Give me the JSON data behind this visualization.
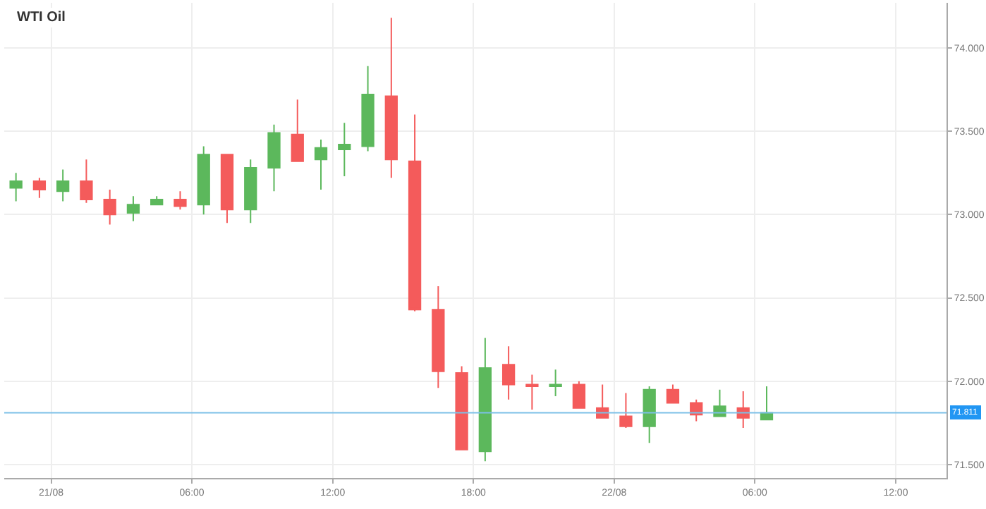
{
  "chart_data": {
    "type": "candlestick",
    "title": "WTI Oil",
    "x": [
      "--08-20T22:30",
      "--08-20T23:30",
      "--08-21T00:30",
      "--08-21T01:30",
      "--08-21T02:30",
      "--08-21T03:30",
      "--08-21T04:30",
      "--08-21T05:30",
      "--08-21T06:30",
      "--08-21T07:30",
      "--08-21T08:30",
      "--08-21T09:30",
      "--08-21T10:30",
      "--08-21T11:30",
      "--08-21T12:30",
      "--08-21T13:30",
      "--08-21T14:30",
      "--08-21T15:30",
      "--08-21T16:30",
      "--08-21T17:30",
      "--08-21T18:30",
      "--08-21T19:30",
      "--08-21T20:30",
      "--08-21T21:30",
      "--08-21T22:30",
      "--08-21T23:30",
      "--08-22T00:30",
      "--08-22T01:30",
      "--08-22T02:30",
      "--08-22T03:30",
      "--08-22T04:30",
      "--08-22T05:30",
      "--08-22T06:30"
    ],
    "ohlc": [
      [
        73.16,
        73.25,
        73.08,
        73.2
      ],
      [
        73.2,
        73.22,
        73.1,
        73.15
      ],
      [
        73.14,
        73.27,
        73.08,
        73.2
      ],
      [
        73.2,
        73.33,
        73.07,
        73.09
      ],
      [
        73.09,
        73.15,
        72.94,
        73.0
      ],
      [
        73.01,
        73.11,
        72.96,
        73.06
      ],
      [
        73.06,
        73.11,
        73.06,
        73.09
      ],
      [
        73.09,
        73.14,
        73.03,
        73.05
      ],
      [
        73.06,
        73.41,
        73.0,
        73.36
      ],
      [
        73.36,
        73.36,
        72.95,
        73.03
      ],
      [
        73.03,
        73.33,
        72.95,
        73.28
      ],
      [
        73.28,
        73.54,
        73.14,
        73.49
      ],
      [
        73.48,
        73.69,
        73.32,
        73.32
      ],
      [
        73.33,
        73.45,
        73.15,
        73.4
      ],
      [
        73.39,
        73.55,
        73.23,
        73.42
      ],
      [
        73.41,
        73.89,
        73.38,
        73.72
      ],
      [
        73.71,
        74.18,
        73.22,
        73.33
      ],
      [
        73.32,
        73.6,
        72.42,
        72.43
      ],
      [
        72.43,
        72.57,
        71.96,
        72.06
      ],
      [
        72.05,
        72.09,
        71.59,
        71.59
      ],
      [
        71.58,
        72.26,
        71.52,
        72.08
      ],
      [
        72.1,
        72.21,
        71.89,
        71.98
      ],
      [
        71.98,
        72.04,
        71.83,
        71.97
      ],
      [
        71.97,
        72.07,
        71.91,
        71.98
      ],
      [
        71.98,
        72.0,
        71.84,
        71.84
      ],
      [
        71.84,
        71.98,
        71.78,
        71.78
      ],
      [
        71.79,
        71.93,
        71.72,
        71.73
      ],
      [
        71.73,
        71.97,
        71.63,
        71.95
      ],
      [
        71.95,
        71.98,
        71.87,
        71.87
      ],
      [
        71.87,
        71.89,
        71.76,
        71.8
      ],
      [
        71.79,
        71.95,
        71.79,
        71.85
      ],
      [
        71.84,
        71.94,
        71.72,
        71.78
      ],
      [
        71.77,
        71.97,
        71.77,
        71.811
      ]
    ],
    "colors": [
      "#5cb85c",
      "#f45b5b",
      "#5cb85c",
      "#f45b5b",
      "#f45b5b",
      "#5cb85c",
      "#5cb85c",
      "#f45b5b",
      "#5cb85c",
      "#f45b5b",
      "#5cb85c",
      "#5cb85c",
      "#f45b5b",
      "#5cb85c",
      "#5cb85c",
      "#5cb85c",
      "#f45b5b",
      "#f45b5b",
      "#f45b5b",
      "#f45b5b",
      "#5cb85c",
      "#f45b5b",
      "#f45b5b",
      "#5cb85c",
      "#f45b5b",
      "#f45b5b",
      "#f45b5b",
      "#5cb85c",
      "#f45b5b",
      "#f45b5b",
      "#5cb85c",
      "#f45b5b",
      "#5cb85c"
    ],
    "xlim": [
      "--08-20T22:00",
      "--08-22T14:10"
    ],
    "xticks": [
      {
        "value": "--08-21T00:00",
        "label": "21/08"
      },
      {
        "value": "--08-21T06:00",
        "label": "06:00"
      },
      {
        "value": "--08-21T12:00",
        "label": "12:00"
      },
      {
        "value": "--08-21T18:00",
        "label": "18:00"
      },
      {
        "value": "--08-22T00:00",
        "label": "22/08"
      },
      {
        "value": "--08-22T06:00",
        "label": "06:00"
      },
      {
        "value": "--08-22T12:00",
        "label": "12:00"
      }
    ],
    "ylim": [
      71.42,
      74.27
    ],
    "yticks": [
      {
        "value": 71.5,
        "label": "71.500"
      },
      {
        "value": 72,
        "label": "72.000"
      },
      {
        "value": 72.5,
        "label": "72.500"
      },
      {
        "value": 73,
        "label": "73.000"
      },
      {
        "value": 73.5,
        "label": "73.500"
      },
      {
        "value": 74,
        "label": "74.000"
      }
    ],
    "ref_lines": [
      {
        "axis": "y",
        "value": 71.811,
        "label": "71.811",
        "color": "#7cc0e8"
      }
    ],
    "grid": true
  }
}
